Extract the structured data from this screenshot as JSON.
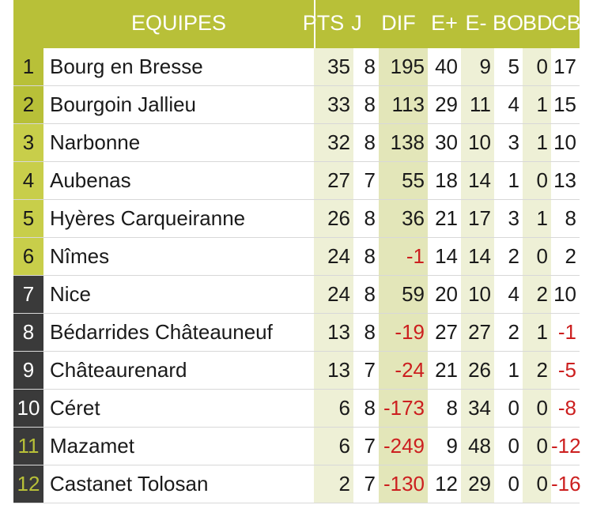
{
  "header": {
    "team": "EQUIPES",
    "pts": "PTS",
    "j": "J",
    "dif": "DIF",
    "eplus": "E+",
    "eminus": "E-",
    "bo": "BO",
    "bd": "BD",
    "cb": "CB"
  },
  "colors": {
    "header_bg": "#b8c038",
    "top_rank": "#b8c038",
    "mid_rank": "#c8ce4a",
    "low_rank": "#3a3a3a",
    "bottom_rank_text": "#b8c038",
    "negative": "#cc1f1f"
  },
  "rows": [
    {
      "rank": "1",
      "team": "Bourg en Bresse",
      "pts": "35",
      "j": "8",
      "dif": "195",
      "eplus": "40",
      "eminus": "9",
      "bo": "5",
      "bd": "0",
      "cb": "17"
    },
    {
      "rank": "2",
      "team": "Bourgoin Jallieu",
      "pts": "33",
      "j": "8",
      "dif": "113",
      "eplus": "29",
      "eminus": "11",
      "bo": "4",
      "bd": "1",
      "cb": "15"
    },
    {
      "rank": "3",
      "team": "Narbonne",
      "pts": "32",
      "j": "8",
      "dif": "138",
      "eplus": "30",
      "eminus": "10",
      "bo": "3",
      "bd": "1",
      "cb": "10"
    },
    {
      "rank": "4",
      "team": "Aubenas",
      "pts": "27",
      "j": "7",
      "dif": "55",
      "eplus": "18",
      "eminus": "14",
      "bo": "1",
      "bd": "0",
      "cb": "13"
    },
    {
      "rank": "5",
      "team": "Hyères Carqueiranne",
      "pts": "26",
      "j": "8",
      "dif": "36",
      "eplus": "21",
      "eminus": "17",
      "bo": "3",
      "bd": "1",
      "cb": "8"
    },
    {
      "rank": "6",
      "team": "Nîmes",
      "pts": "24",
      "j": "8",
      "dif": "-1",
      "eplus": "14",
      "eminus": "14",
      "bo": "2",
      "bd": "0",
      "cb": "2"
    },
    {
      "rank": "7",
      "team": "Nice",
      "pts": "24",
      "j": "8",
      "dif": "59",
      "eplus": "20",
      "eminus": "10",
      "bo": "4",
      "bd": "2",
      "cb": "10"
    },
    {
      "rank": "8",
      "team": "Bédarrides Châteauneuf",
      "pts": "13",
      "j": "8",
      "dif": "-19",
      "eplus": "27",
      "eminus": "27",
      "bo": "2",
      "bd": "1",
      "cb": "-1"
    },
    {
      "rank": "9",
      "team": "Châteaurenard",
      "pts": "13",
      "j": "7",
      "dif": "-24",
      "eplus": "21",
      "eminus": "26",
      "bo": "1",
      "bd": "2",
      "cb": "-5"
    },
    {
      "rank": "10",
      "team": "Céret",
      "pts": "6",
      "j": "8",
      "dif": "-173",
      "eplus": "8",
      "eminus": "34",
      "bo": "0",
      "bd": "0",
      "cb": "-8"
    },
    {
      "rank": "11",
      "team": "Mazamet",
      "pts": "6",
      "j": "7",
      "dif": "-249",
      "eplus": "9",
      "eminus": "48",
      "bo": "0",
      "bd": "0",
      "cb": "-12"
    },
    {
      "rank": "12",
      "team": "Castanet Tolosan",
      "pts": "2",
      "j": "7",
      "dif": "-130",
      "eplus": "12",
      "eminus": "29",
      "bo": "0",
      "bd": "0",
      "cb": "-16"
    }
  ]
}
